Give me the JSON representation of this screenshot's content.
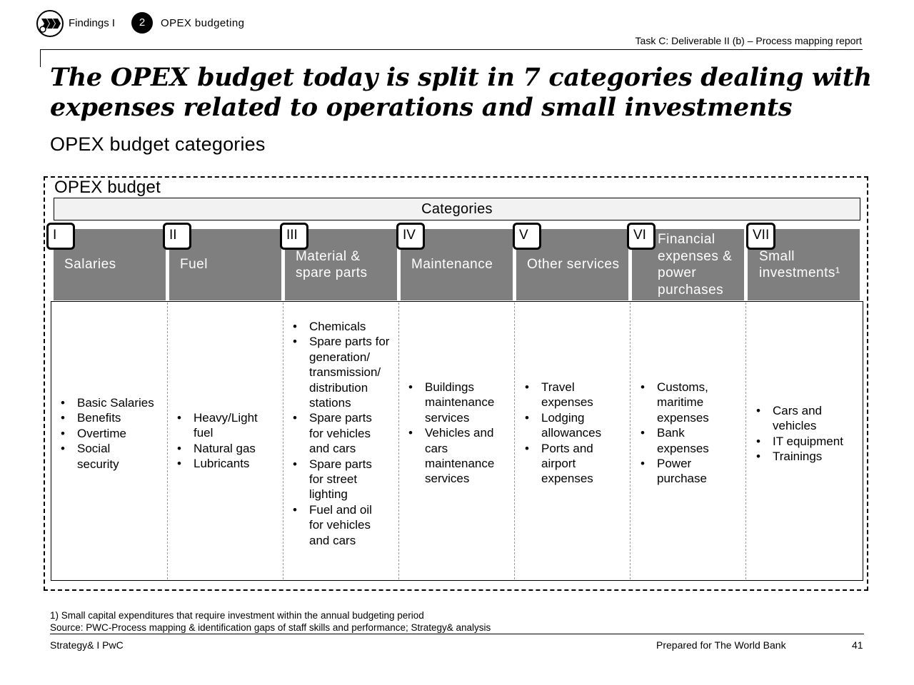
{
  "header": {
    "logo_icon": "chevrons-logo-icon",
    "section": "Findings I",
    "step_number": "2",
    "step_label": "OPEX budgeting",
    "task": "Task C: Deliverable II (b) – Process mapping report"
  },
  "title": "The OPEX budget today is split in 7 categories dealing with expenses related to operations and small investments",
  "subtitle": "OPEX budget categories",
  "diagram": {
    "frame_label": "OPEX budget",
    "categories_label": "Categories",
    "categories": [
      {
        "numeral": "I",
        "name": "Salaries",
        "items": [
          "Basic Salaries",
          "Benefits",
          "Overtime",
          "Social security"
        ]
      },
      {
        "numeral": "II",
        "name": "Fuel",
        "items": [
          "Heavy/Light fuel",
          "Natural gas",
          "Lubricants"
        ]
      },
      {
        "numeral": "III",
        "name": "Material & spare parts",
        "items": [
          "Chemicals",
          "Spare parts for generation/ transmission/ distribution stations",
          "Spare parts for vehicles and cars",
          "Spare parts for street lighting",
          "Fuel and oil for vehicles and cars"
        ]
      },
      {
        "numeral": "IV",
        "name": "Maintenance",
        "items": [
          "Buildings maintenance services",
          "Vehicles and cars maintenance services"
        ]
      },
      {
        "numeral": "V",
        "name": "Other services",
        "items": [
          "Travel expenses",
          "Lodging allowances",
          "Ports and airport expenses"
        ]
      },
      {
        "numeral": "VI",
        "name": "Financial expenses & power purchases",
        "items": [
          "Customs, maritime expenses",
          "Bank expenses",
          "Power purchase"
        ]
      },
      {
        "numeral": "VII",
        "name": "Small investments¹",
        "items": [
          "Cars and vehicles",
          "IT equipment",
          "Trainings"
        ]
      }
    ]
  },
  "footnotes": {
    "note": "1) Small capital expenditures that require investment within the annual budgeting period",
    "source": "Source: PWC-Process mapping & identification gaps of staff skills and performance; Strategy& analysis"
  },
  "footer": {
    "left": "Strategy& I PwC",
    "prepared_for": "Prepared for The World Bank",
    "page_number": "41"
  }
}
